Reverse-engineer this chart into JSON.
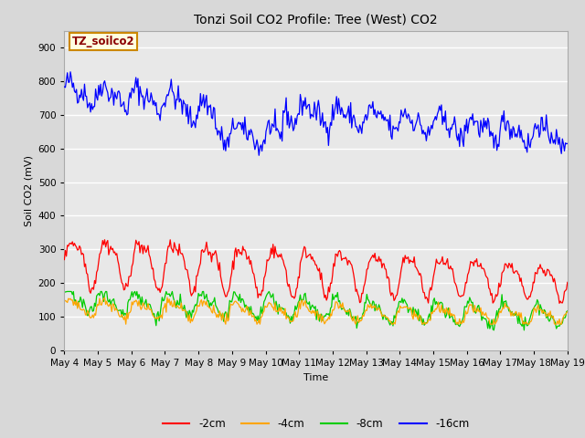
{
  "title": "Tonzi Soil CO2 Profile: Tree (West) CO2",
  "ylabel": "Soil CO2 (mV)",
  "xlabel": "Time",
  "annotation": "TZ_soilco2",
  "ylim": [
    0,
    950
  ],
  "yticks": [
    0,
    100,
    200,
    300,
    400,
    500,
    600,
    700,
    800,
    900
  ],
  "xtick_labels": [
    "May 4",
    "May 5",
    "May 6",
    "May 7",
    "May 8",
    "May 9",
    "May 10",
    "May 11",
    "May 12",
    "May 13",
    "May 14",
    "May 15",
    "May 16",
    "May 17",
    "May 18",
    "May 19"
  ],
  "colors": {
    "red": "#ff0000",
    "orange": "#ffa500",
    "green": "#00cc00",
    "blue": "#0000ff"
  },
  "legend_labels": [
    "-2cm",
    "-4cm",
    "-8cm",
    "-16cm"
  ],
  "fig_facecolor": "#d8d8d8",
  "plot_bg_color": "#e8e8e8",
  "grid_color": "#ffffff",
  "n_points": 500,
  "title_fontsize": 10,
  "label_fontsize": 8,
  "tick_fontsize": 7.5
}
